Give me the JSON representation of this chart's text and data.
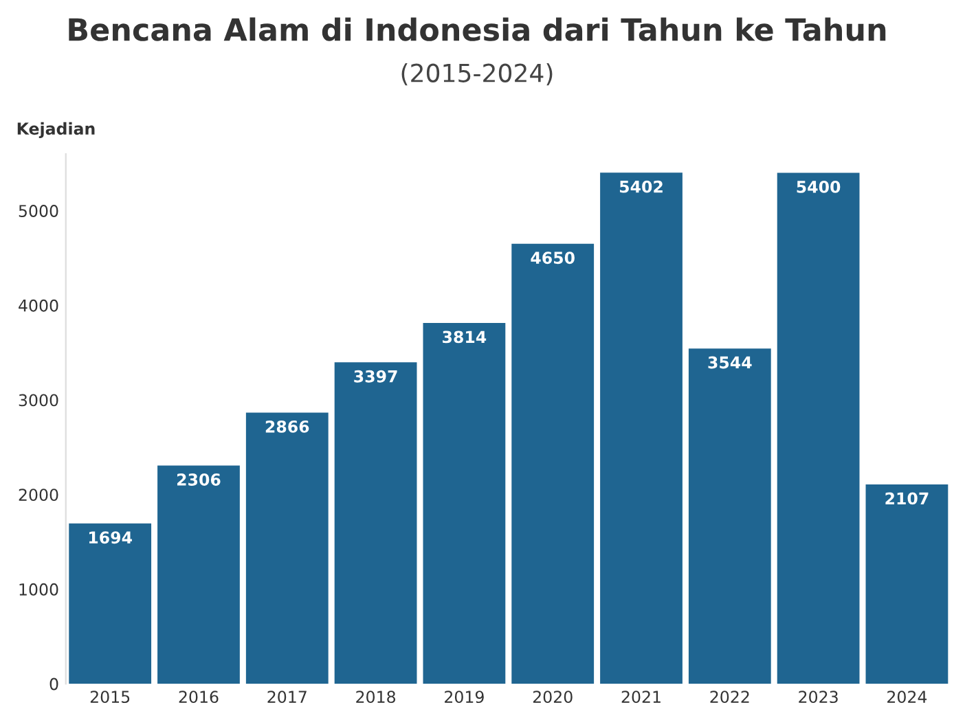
{
  "chart_data": {
    "type": "bar",
    "title": "Bencana Alam di Indonesia dari Tahun ke Tahun",
    "subtitle": "(2015-2024)",
    "ylabel": "Kejadian",
    "categories": [
      "2015",
      "2016",
      "2017",
      "2018",
      "2019",
      "2020",
      "2021",
      "2022",
      "2023",
      "2024"
    ],
    "values": [
      1694,
      2306,
      2866,
      3397,
      3814,
      4650,
      5402,
      3544,
      5400,
      2107
    ],
    "color": "#1f6591",
    "data_labels": true,
    "ylim": [
      0,
      5600
    ],
    "yticks": [
      0,
      1000,
      2000,
      3000,
      4000,
      5000
    ],
    "grid": false
  }
}
